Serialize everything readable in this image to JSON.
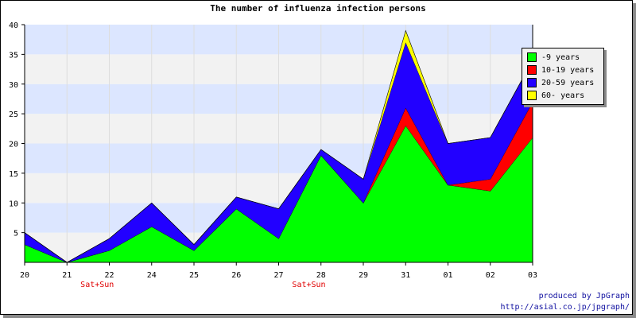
{
  "chart_data": {
    "type": "area",
    "stacked": true,
    "title": "The number of influenza infection persons",
    "categories": [
      "20",
      "21",
      "22",
      "24",
      "25",
      "26",
      "27",
      "28",
      "29",
      "31",
      "01",
      "02",
      "03"
    ],
    "category_notes": {
      "21": "Sat+Sun",
      "27": "Sat+Sun"
    },
    "ylim": [
      0,
      40
    ],
    "yticks": [
      5,
      10,
      15,
      20,
      25,
      30,
      35,
      40
    ],
    "grid": "horizontal bands",
    "legend_position": "right",
    "series": [
      {
        "name": "-9 years",
        "color": "#00ff00",
        "values": [
          3,
          0,
          2,
          6,
          2,
          9,
          4,
          18,
          10,
          23,
          13,
          12,
          21
        ]
      },
      {
        "name": "10-19 years",
        "color": "#ff0000",
        "values": [
          0,
          0,
          0,
          0,
          0,
          0,
          0,
          0,
          0,
          3,
          0,
          2,
          6
        ]
      },
      {
        "name": "20-59 years",
        "color": "#2200ff",
        "values": [
          2,
          0,
          2,
          4,
          1,
          2,
          5,
          1,
          4,
          11,
          7,
          7,
          7
        ]
      },
      {
        "name": "60- years",
        "color": "#ffff00",
        "values": [
          0,
          0,
          0,
          0,
          0,
          0,
          0,
          0,
          0,
          2,
          0,
          0,
          0
        ]
      }
    ]
  },
  "credits": {
    "line1": "produced by JpGraph",
    "line2": "http://asial.co.jp/jpgraph/"
  }
}
